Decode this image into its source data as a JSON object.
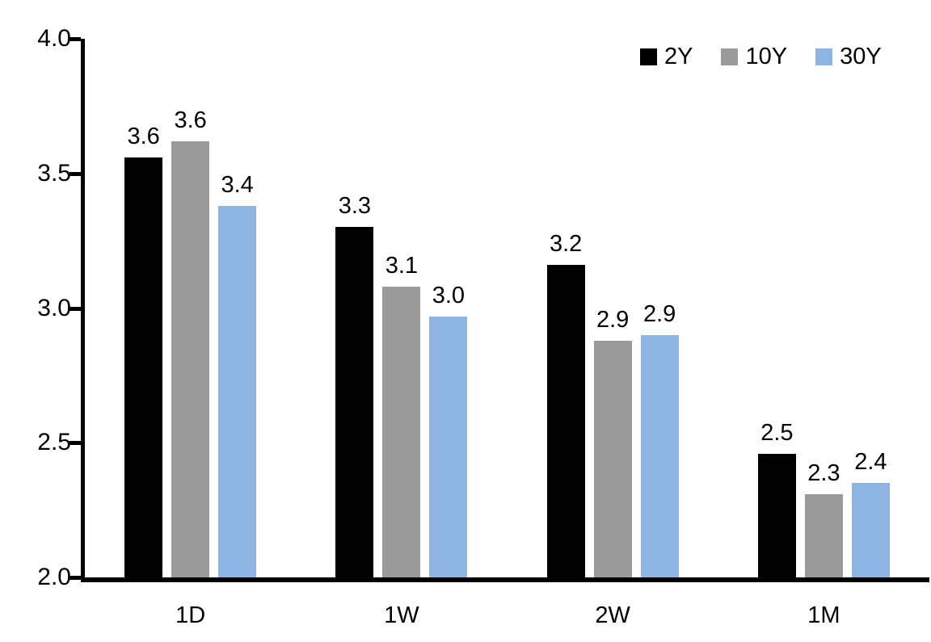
{
  "chart_data": {
    "type": "bar",
    "title": "",
    "xlabel": "",
    "ylabel": "",
    "grid": false,
    "legend_position": "top-right",
    "categories": [
      "1D",
      "1W",
      "2W",
      "1M"
    ],
    "series": [
      {
        "name": "2Y",
        "color": "#000000",
        "values": [
          3.56,
          3.3,
          3.16,
          2.46
        ],
        "labels": [
          "3.6",
          "3.3",
          "3.2",
          "2.5"
        ]
      },
      {
        "name": "10Y",
        "color": "#9A9A9A",
        "values": [
          3.62,
          3.08,
          2.88,
          2.31
        ],
        "labels": [
          "3.6",
          "3.1",
          "2.9",
          "2.3"
        ]
      },
      {
        "name": "30Y",
        "color": "#8DB4E2",
        "values": [
          3.38,
          2.97,
          2.9,
          2.35
        ],
        "labels": [
          "3.4",
          "3.0",
          "2.9",
          "2.4"
        ]
      }
    ],
    "y_axis": {
      "min": 2.0,
      "max": 4.0,
      "tick_step": 0.5,
      "ticks": [
        "2.0",
        "2.5",
        "3.0",
        "3.5",
        "4.0"
      ]
    },
    "axis_color": "#000000",
    "label_color": "#000000"
  }
}
